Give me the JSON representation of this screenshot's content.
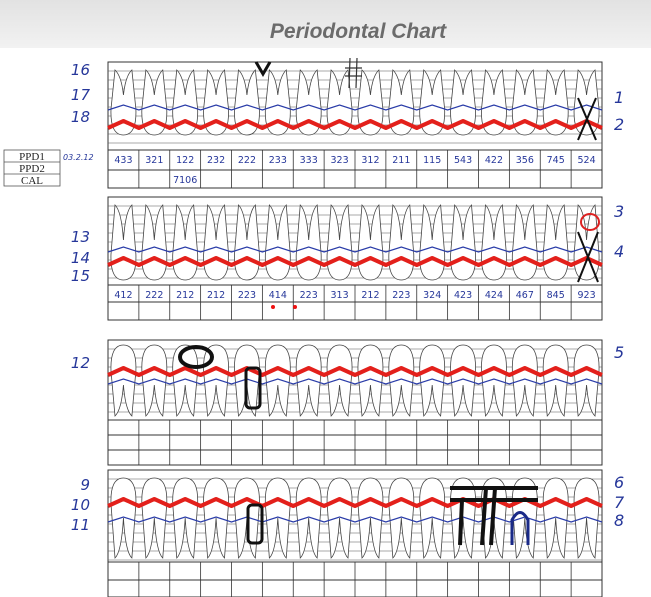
{
  "header": {
    "title": "Periodontal Chart"
  },
  "legend": [
    "PPD1",
    "PPD2",
    "CAL"
  ],
  "date": "03.2.12",
  "sections": [
    {
      "row_labels": [
        "16",
        "17",
        "18"
      ],
      "side_labels": [
        "1",
        "2"
      ],
      "readings": [
        "433",
        "321",
        "122",
        "232",
        "222",
        "233",
        "333",
        "323",
        "312",
        "211",
        "115",
        "543",
        "422",
        "356",
        "745",
        "524"
      ],
      "extra": "7106"
    },
    {
      "row_labels": [
        "13",
        "14",
        "15"
      ],
      "side_labels": [
        "3",
        "4"
      ],
      "readings": [
        "412",
        "222",
        "212",
        "212",
        "223",
        "414",
        "223",
        "313",
        "212",
        "223",
        "324",
        "423",
        "424",
        "467",
        "845",
        "923"
      ]
    },
    {
      "row_labels": [
        "12"
      ],
      "side_labels": [
        "5"
      ]
    },
    {
      "row_labels": [
        "9",
        "10",
        "11"
      ],
      "side_labels": [
        "6",
        "7",
        "8"
      ]
    }
  ]
}
